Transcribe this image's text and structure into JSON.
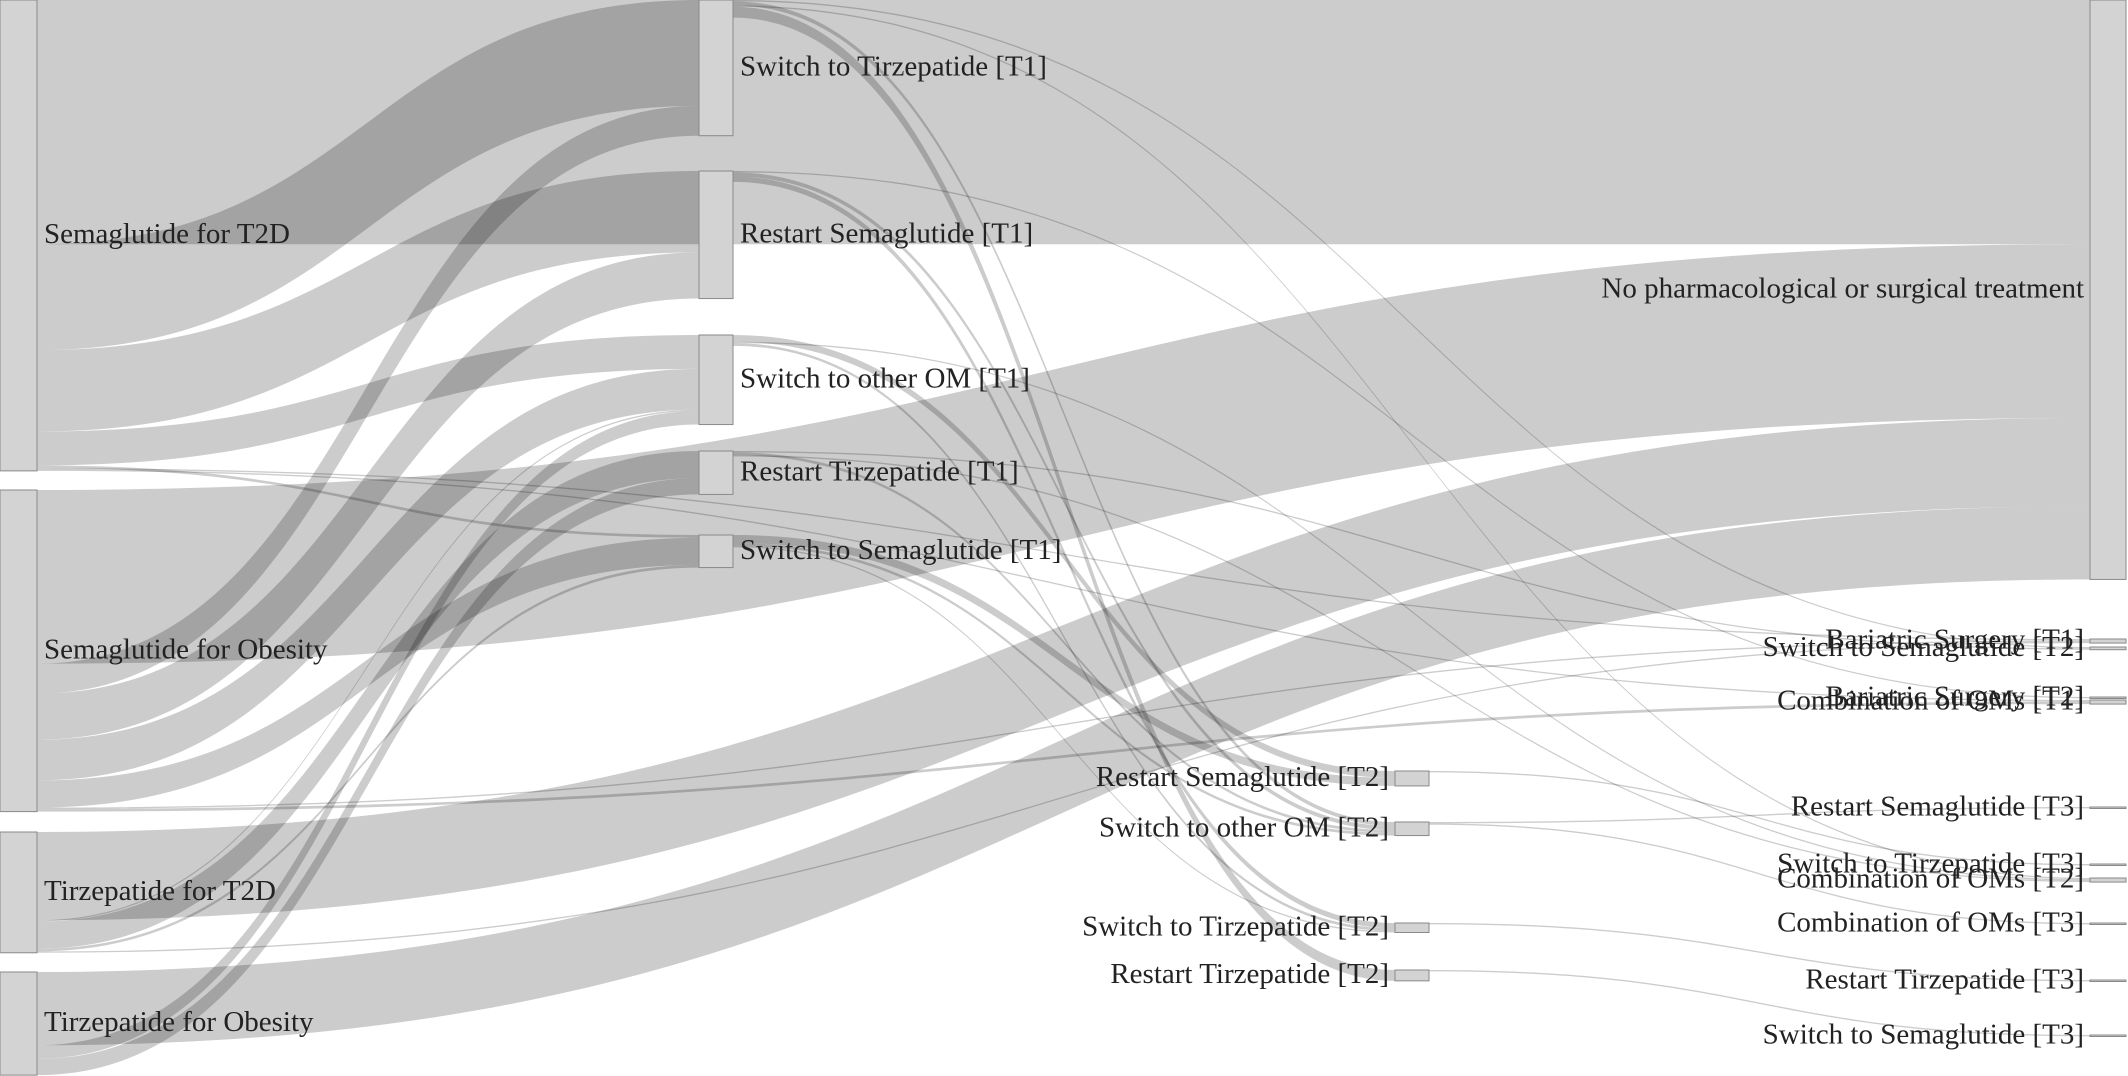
{
  "chart_data": {
    "type": "sankey",
    "node_color": "#d3d3d3",
    "node_line_color": "#8a8a8a",
    "link_color": "rgba(0,0,0,0.2)",
    "nodes": [
      "Semaglutide for T2D",
      "Semaglutide for Obesity",
      "Tirzepatide for T2D",
      "Tirzepatide for Obesity",
      "Switch to Tirzepatide [T1]",
      "Restart Semaglutide [T1]",
      "Switch to other OM [T1]",
      "Restart Tirzepatide [T1]",
      "Switch to Semaglutide [T1]",
      "Bariatric Surgery [T1]",
      "Combination of OMs [T1]",
      "No pharmacological or surgical treatment",
      "Restart Semaglutide [T2]",
      "Switch to other OM [T2]",
      "Combination of OMs [T2]",
      "Switch to Tirzepatide [T2]",
      "Restart Tirzepatide [T2]",
      "Switch to Semaglutide [T2]",
      "Bariatric Surgery [T2]",
      "Restart Semaglutide [T3]",
      "Switch to Tirzepatide [T3]",
      "Combination of OMs [T3]",
      "Restart Tirzepatide [T3]",
      "Switch to Semaglutide [T3]"
    ],
    "links": [
      {
        "source": 0,
        "target": 11,
        "value": 180
      },
      {
        "source": 0,
        "target": 4,
        "value": 78
      },
      {
        "source": 0,
        "target": 5,
        "value": 60
      },
      {
        "source": 0,
        "target": 6,
        "value": 25
      },
      {
        "source": 0,
        "target": 8,
        "value": 2
      },
      {
        "source": 0,
        "target": 9,
        "value": 1
      },
      {
        "source": 0,
        "target": 10,
        "value": 1
      },
      {
        "source": 1,
        "target": 11,
        "value": 128
      },
      {
        "source": 1,
        "target": 5,
        "value": 34
      },
      {
        "source": 1,
        "target": 4,
        "value": 22
      },
      {
        "source": 1,
        "target": 6,
        "value": 30
      },
      {
        "source": 1,
        "target": 8,
        "value": 20
      },
      {
        "source": 1,
        "target": 9,
        "value": 1
      },
      {
        "source": 1,
        "target": 10,
        "value": 2
      },
      {
        "source": 2,
        "target": 11,
        "value": 65
      },
      {
        "source": 2,
        "target": 7,
        "value": 20
      },
      {
        "source": 2,
        "target": 8,
        "value": 2
      },
      {
        "source": 2,
        "target": 6,
        "value": 1
      },
      {
        "source": 2,
        "target": 9,
        "value": 1
      },
      {
        "source": 3,
        "target": 11,
        "value": 54
      },
      {
        "source": 3,
        "target": 7,
        "value": 12
      },
      {
        "source": 3,
        "target": 6,
        "value": 10
      },
      {
        "source": 4,
        "target": 17,
        "value": 1
      },
      {
        "source": 4,
        "target": 16,
        "value": 8
      },
      {
        "source": 4,
        "target": 13,
        "value": 3
      },
      {
        "source": 4,
        "target": 14,
        "value": 1
      },
      {
        "source": 5,
        "target": 15,
        "value": 4
      },
      {
        "source": 5,
        "target": 13,
        "value": 3
      },
      {
        "source": 5,
        "target": 18,
        "value": 1
      },
      {
        "source": 6,
        "target": 12,
        "value": 5
      },
      {
        "source": 6,
        "target": 15,
        "value": 2
      },
      {
        "source": 6,
        "target": 14,
        "value": 1
      },
      {
        "source": 7,
        "target": 14,
        "value": 1
      },
      {
        "source": 7,
        "target": 17,
        "value": 1
      },
      {
        "source": 7,
        "target": 13,
        "value": 2
      },
      {
        "source": 8,
        "target": 12,
        "value": 6
      },
      {
        "source": 8,
        "target": 13,
        "value": 2
      },
      {
        "source": 8,
        "target": 15,
        "value": 1
      },
      {
        "source": 12,
        "target": 20,
        "value": 1
      },
      {
        "source": 13,
        "target": 19,
        "value": 1
      },
      {
        "source": 13,
        "target": 21,
        "value": 1
      },
      {
        "source": 15,
        "target": 22,
        "value": 1
      },
      {
        "source": 16,
        "target": 23,
        "value": 1
      }
    ]
  }
}
